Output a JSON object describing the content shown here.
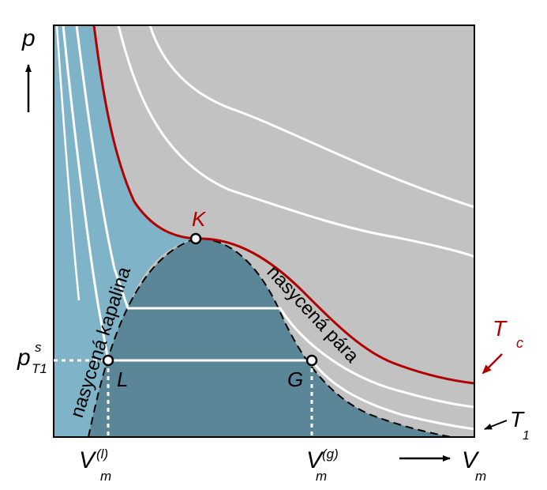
{
  "axes": {
    "y_label": "p",
    "x_label": "V",
    "x_label_sub": "m"
  },
  "labels": {
    "critical_point": "K",
    "liquid_point": "L",
    "gas_point": "G",
    "saturated_liquid": "nasycená kapalina",
    "saturated_vapor": "nasycená pára",
    "critical_isotherm": "T",
    "critical_isotherm_sub": "c",
    "isotherm_t1": "T",
    "isotherm_t1_sub": "1",
    "pressure_sat": "p",
    "pressure_sat_sup": "s",
    "pressure_sat_sub": "T1",
    "v_liquid": "V",
    "v_liquid_sub": "m",
    "v_liquid_sup": "(l)",
    "v_gas": "V",
    "v_gas_sub": "m",
    "v_gas_sup": "(g)"
  },
  "colors": {
    "liquid_region": "#7fb3c7",
    "two_phase_region": "#5b8698",
    "gas_region": "#c2c2c2",
    "critical_isotherm": "#b00000",
    "isotherms": "#ffffff",
    "frame": "#000000"
  }
}
